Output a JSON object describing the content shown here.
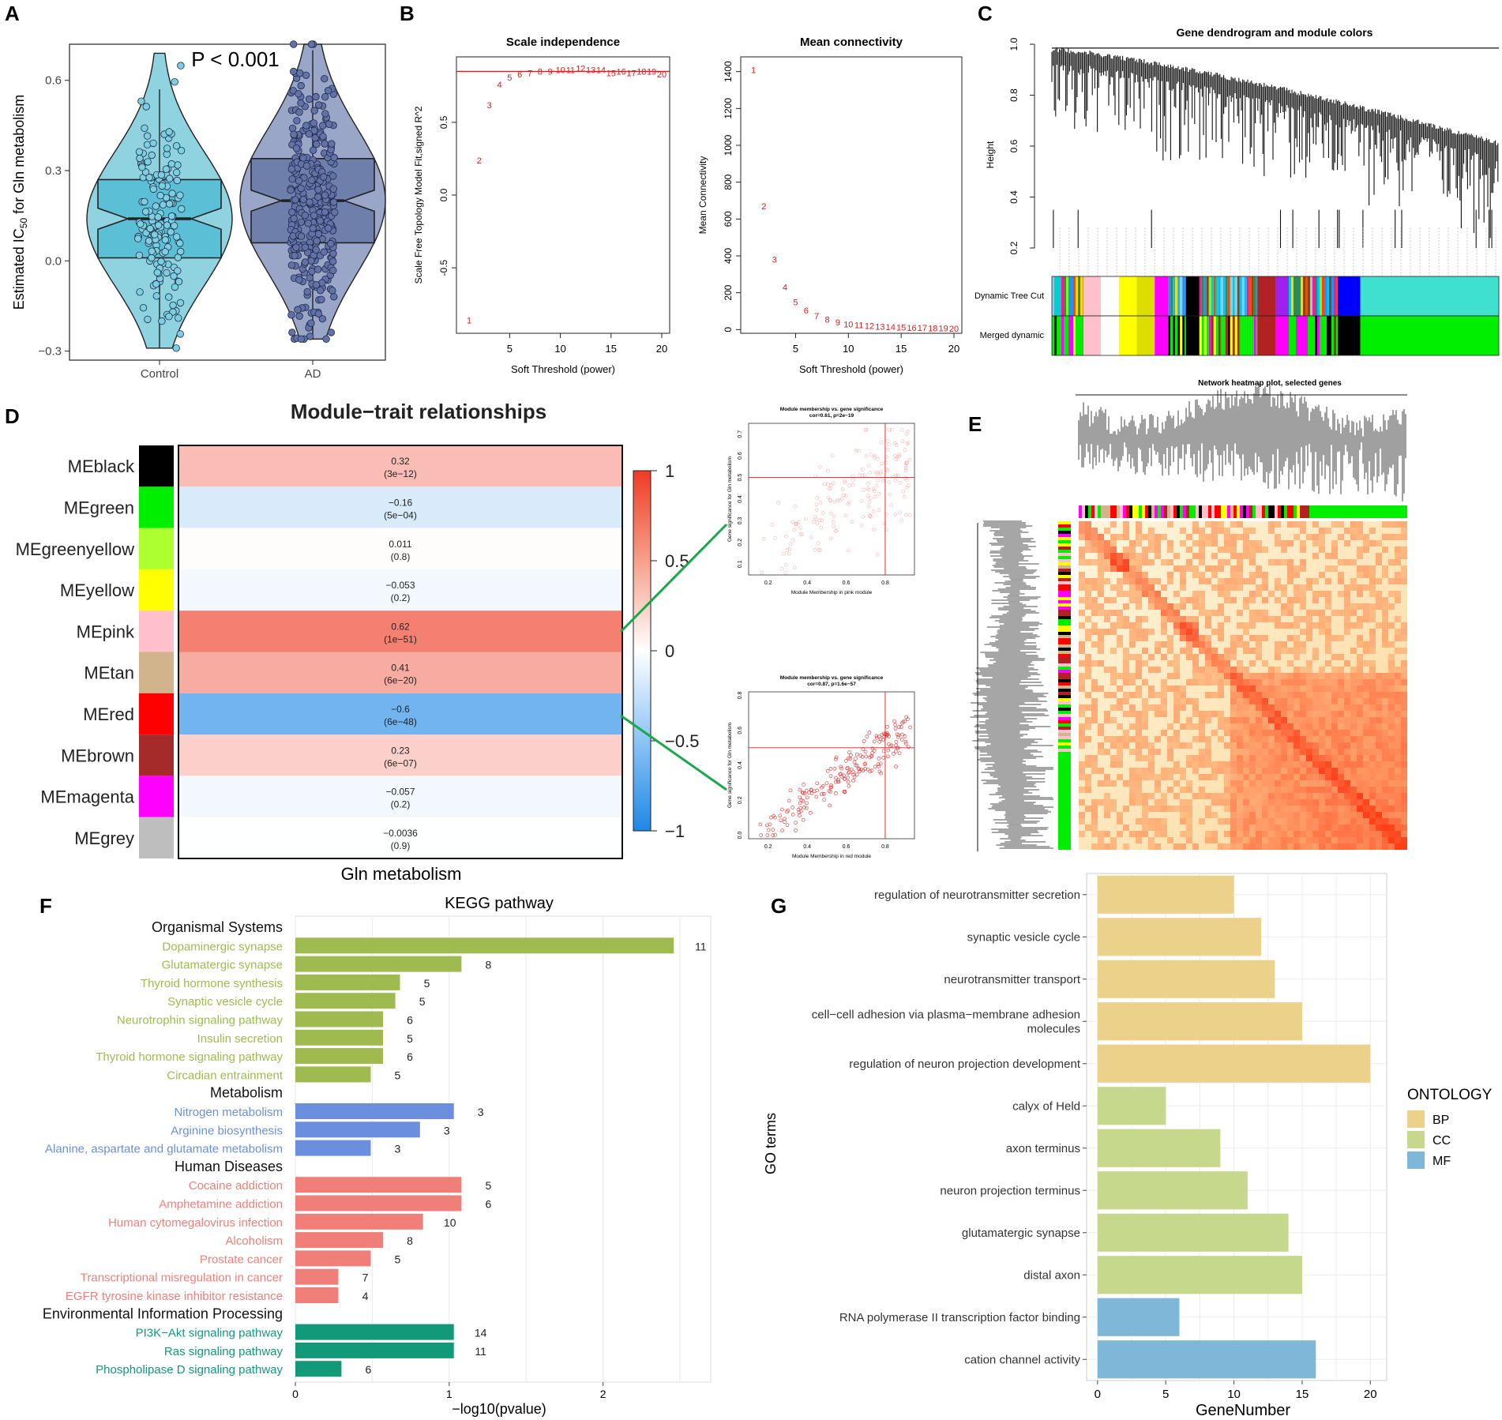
{
  "colors": {
    "control_fill": "#8fd3e0",
    "control_box": "#5bc0d6",
    "control_pt": "#7ccfe0",
    "ad_fill": "#9aa6c8",
    "ad_box": "#6e7fab",
    "ad_pt": "#6272a8",
    "red": "#e41a1c",
    "bp": "#ecd18a",
    "cc": "#c5d88c",
    "mf": "#7eb7d8",
    "green_line": "#1aa84a"
  },
  "panelA": {
    "letter": "A",
    "pvalue": "P < 0.001",
    "ylabel_main": "Estimated IC",
    "ylabel_sub": "50",
    "ylabel_tail": " for Gln metabolism",
    "categories": [
      "Control",
      "AD"
    ],
    "ylim": [
      -0.33,
      0.72
    ],
    "yticks": [
      -0.3,
      0.0,
      0.3,
      0.6
    ],
    "ytick_labels": [
      "−0.3",
      "0.0",
      "0.3",
      "0.6"
    ],
    "boxes": [
      {
        "q1": 0.01,
        "median": 0.14,
        "q3": 0.27,
        "min": -0.29,
        "max": 0.69,
        "whisk_lo": -0.29,
        "whisk_hi": 0.57
      },
      {
        "q1": 0.06,
        "median": 0.2,
        "q3": 0.34,
        "min": -0.26,
        "max": 0.72,
        "whisk_lo": -0.26,
        "whisk_hi": 0.7
      }
    ]
  },
  "panelB": {
    "letter": "B",
    "scale": {
      "type": "scatter",
      "title": "Scale independence",
      "xlabel": "Soft Threshold (power)",
      "ylabel": "Scale Free Topology Model Fit,signed R^2",
      "xlim": [
        1,
        20
      ],
      "ylim": [
        -0.95,
        0.95
      ],
      "xticks": [
        5,
        10,
        15,
        20
      ],
      "yticks": [
        -0.5,
        0.0,
        0.5
      ],
      "ytick_labels": [
        "-0.5",
        "0.0",
        "0.5"
      ],
      "hline": 0.85,
      "x": [
        1,
        2,
        3,
        4,
        5,
        6,
        7,
        8,
        9,
        10,
        11,
        12,
        13,
        14,
        15,
        16,
        17,
        18,
        19,
        20
      ],
      "y": [
        -0.86,
        0.24,
        0.62,
        0.76,
        0.81,
        0.83,
        0.84,
        0.85,
        0.85,
        0.86,
        0.86,
        0.87,
        0.86,
        0.86,
        0.84,
        0.85,
        0.84,
        0.85,
        0.85,
        0.83
      ]
    },
    "conn": {
      "type": "scatter",
      "title": "Mean connectivity",
      "xlabel": "Soft Threshold (power)",
      "ylabel": "Mean Connectivity",
      "xlim": [
        1,
        20
      ],
      "ylim": [
        -20,
        1480
      ],
      "xticks": [
        5,
        10,
        15,
        20
      ],
      "yticks": [
        0,
        200,
        400,
        600,
        800,
        1000,
        1200,
        1400
      ],
      "x": [
        1,
        2,
        3,
        4,
        5,
        6,
        7,
        8,
        9,
        10,
        11,
        12,
        13,
        14,
        15,
        16,
        17,
        18,
        19,
        20
      ],
      "y": [
        1410,
        670,
        380,
        230,
        150,
        105,
        75,
        55,
        40,
        30,
        24,
        20,
        17,
        14,
        12,
        10,
        9,
        8,
        7,
        6
      ]
    }
  },
  "panelC": {
    "letter": "C",
    "title": "Gene dendrogram and module colors",
    "ylabel": "Height",
    "yticks": [
      "0.2",
      "0.4",
      "0.6",
      "0.8",
      "1.0"
    ],
    "row1": "Dynamic Tree Cut",
    "row2": "Merged dynamic"
  },
  "panelD": {
    "letter": "D",
    "type": "heatmap",
    "title": "Module−trait relationships",
    "xlabel": "Gln metabolism",
    "modules": [
      {
        "name": "MEblack",
        "color": "#000000",
        "corr": 0.32,
        "corr_label": "0.32",
        "p": "(3e−12)"
      },
      {
        "name": "MEgreen",
        "color": "#00ee00",
        "corr": -0.16,
        "corr_label": "−0.16",
        "p": "(5e−04)"
      },
      {
        "name": "MEgreenyellow",
        "color": "#adff2f",
        "corr": 0.011,
        "corr_label": "0.011",
        "p": "(0.8)"
      },
      {
        "name": "MEyellow",
        "color": "#ffff00",
        "corr": -0.053,
        "corr_label": "−0.053",
        "p": "(0.2)"
      },
      {
        "name": "MEpink",
        "color": "#ffc0cb",
        "corr": 0.62,
        "corr_label": "0.62",
        "p": "(1e−51)"
      },
      {
        "name": "MEtan",
        "color": "#d2b48c",
        "corr": 0.41,
        "corr_label": "0.41",
        "p": "(6e−20)"
      },
      {
        "name": "MEred",
        "color": "#ff0000",
        "corr": -0.6,
        "corr_label": "−0.6",
        "p": "(6e−48)"
      },
      {
        "name": "MEbrown",
        "color": "#a52a2a",
        "corr": 0.23,
        "corr_label": "0.23",
        "p": "(6e−07)"
      },
      {
        "name": "MEmagenta",
        "color": "#ff00ff",
        "corr": -0.057,
        "corr_label": "−0.057",
        "p": "(0.2)"
      },
      {
        "name": "MEgrey",
        "color": "#bebebe",
        "corr": -0.0036,
        "corr_label": "−0.0036",
        "p": "(0.9)"
      }
    ],
    "legend_ticks": [
      "1",
      "0.5",
      "0",
      "−0.5",
      "−1"
    ],
    "scatter_pink": {
      "title1": "Module membership vs. gene significance",
      "title2": "cor=0.61, p=2e−19",
      "xlabel": "Module Membership in pink module",
      "ylabel": "Gene significance for Gln metabolism",
      "xticks": [
        "0.2",
        "0.4",
        "0.6",
        "0.8"
      ],
      "yticks": [
        "0.1",
        "0.2",
        "0.3",
        "0.4",
        "0.5",
        "0.6",
        "0.7"
      ],
      "xlim": [
        0.1,
        0.95
      ],
      "ylim": [
        0.05,
        0.75
      ],
      "vline": 0.8,
      "hline": 0.5
    },
    "scatter_red": {
      "title1": "Module membership vs. gene significance",
      "title2": "cor=0.87, p=1.6e−57",
      "xlabel": "Module Membership in red module",
      "ylabel": "Gene significance for Gln metabolism",
      "xticks": [
        "0.2",
        "0.4",
        "0.6",
        "0.8"
      ],
      "yticks": [
        "0.0",
        "0.2",
        "0.4",
        "0.6",
        "0.8"
      ],
      "xlim": [
        0.1,
        0.95
      ],
      "ylim": [
        -0.02,
        0.82
      ],
      "vline": 0.8,
      "hline": 0.5
    }
  },
  "panelE": {
    "letter": "E",
    "title": "Network heatmap plot, selected genes"
  },
  "panelF": {
    "letter": "F",
    "type": "bar",
    "title": "KEGG pathway",
    "xlabel": "−log10(pvalue)",
    "xlim": [
      0,
      2.7
    ],
    "xticks": [
      0,
      1,
      2
    ],
    "groups": [
      {
        "name": "Organismal Systems",
        "color": "#9fbb4f",
        "items": [
          {
            "label": "Dopaminergic synapse",
            "value": 2.46,
            "count": "11"
          },
          {
            "label": "Glutamatergic synapse",
            "value": 1.08,
            "count": "8"
          },
          {
            "label": "Thyroid hormone synthesis",
            "value": 0.68,
            "count": "5"
          },
          {
            "label": "Synaptic vesicle cycle",
            "value": 0.65,
            "count": "5"
          },
          {
            "label": "Neurotrophin signaling pathway",
            "value": 0.57,
            "count": "6"
          },
          {
            "label": "Insulin secretion",
            "value": 0.57,
            "count": "5"
          },
          {
            "label": "Thyroid hormone signaling pathway",
            "value": 0.57,
            "count": "6"
          },
          {
            "label": "Circadian entrainment",
            "value": 0.49,
            "count": "5"
          }
        ]
      },
      {
        "name": "Metabolism",
        "color": "#6b8fde",
        "items": [
          {
            "label": "Nitrogen metabolism",
            "value": 1.03,
            "count": "3"
          },
          {
            "label": "Arginine biosynthesis",
            "value": 0.81,
            "count": "3"
          },
          {
            "label": "Alanine, aspartate and glutamate metabolism",
            "value": 0.49,
            "count": "3"
          }
        ]
      },
      {
        "name": "Human Diseases",
        "color": "#f07f7a",
        "items": [
          {
            "label": "Cocaine addiction",
            "value": 1.08,
            "count": "5"
          },
          {
            "label": "Amphetamine addiction",
            "value": 1.08,
            "count": "6"
          },
          {
            "label": "Human cytomegalovirus infection",
            "value": 0.83,
            "count": "10"
          },
          {
            "label": "Alcoholism",
            "value": 0.57,
            "count": "8"
          },
          {
            "label": "Prostate cancer",
            "value": 0.49,
            "count": "5"
          },
          {
            "label": "Transcriptional misregulation in cancer",
            "value": 0.28,
            "count": "7"
          },
          {
            "label": "EGFR tyrosine kinase inhibitor resistance",
            "value": 0.28,
            "count": "4"
          }
        ]
      },
      {
        "name": "Environmental Information Processing",
        "color": "#12997a",
        "items": [
          {
            "label": "PI3K−Akt signaling pathway",
            "value": 1.03,
            "count": "14"
          },
          {
            "label": "Ras signaling pathway",
            "value": 1.03,
            "count": "11"
          },
          {
            "label": "Phospholipase D signaling pathway",
            "value": 0.3,
            "count": "6"
          }
        ]
      }
    ]
  },
  "panelG": {
    "letter": "G",
    "type": "bar",
    "xlabel": "GeneNumber",
    "ylabel": "GO terms",
    "xlim": [
      -0.8,
      21.2
    ],
    "xticks": [
      0,
      5,
      10,
      15,
      20
    ],
    "legend_title": "ONTOLOGY",
    "legend": [
      {
        "key": "BP",
        "color": "#ecd18a"
      },
      {
        "key": "CC",
        "color": "#c5d88c"
      },
      {
        "key": "MF",
        "color": "#7eb7d8"
      }
    ],
    "items": [
      {
        "label": [
          "regulation of neurotransmitter secretion"
        ],
        "value": 10,
        "ont": "BP"
      },
      {
        "label": [
          "synaptic vesicle cycle"
        ],
        "value": 12,
        "ont": "BP"
      },
      {
        "label": [
          "neurotransmitter transport"
        ],
        "value": 13,
        "ont": "BP"
      },
      {
        "label": [
          "cell−cell adhesion via plasma−membrane adhesion",
          "molecules"
        ],
        "value": 15,
        "ont": "BP"
      },
      {
        "label": [
          "regulation of neuron projection development"
        ],
        "value": 20,
        "ont": "BP"
      },
      {
        "label": [
          "calyx of Held"
        ],
        "value": 5,
        "ont": "CC"
      },
      {
        "label": [
          "axon terminus"
        ],
        "value": 9,
        "ont": "CC"
      },
      {
        "label": [
          "neuron projection terminus"
        ],
        "value": 11,
        "ont": "CC"
      },
      {
        "label": [
          "glutamatergic synapse"
        ],
        "value": 14,
        "ont": "CC"
      },
      {
        "label": [
          "distal axon"
        ],
        "value": 15,
        "ont": "CC"
      },
      {
        "label": [
          "RNA polymerase II transcription factor binding"
        ],
        "value": 6,
        "ont": "MF"
      },
      {
        "label": [
          "cation channel activity"
        ],
        "value": 16,
        "ont": "MF"
      }
    ]
  }
}
